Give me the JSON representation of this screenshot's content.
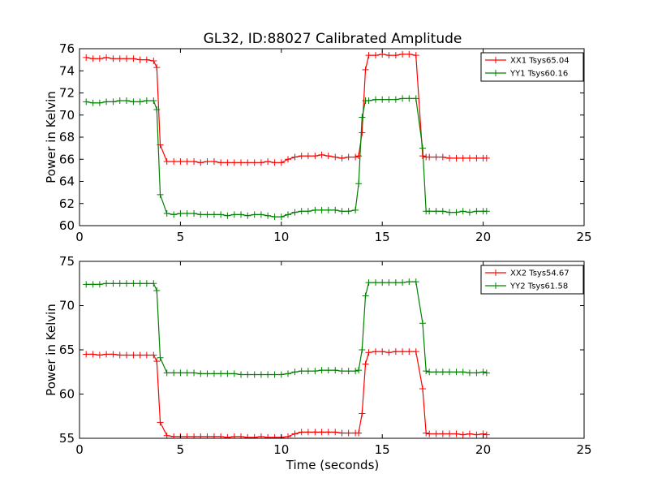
{
  "chart_data": [
    {
      "type": "line",
      "title": "GL32, ID:88027 Calibrated Amplitude",
      "xlabel": "",
      "ylabel": "Power in Kelvin",
      "xlim": [
        0,
        25
      ],
      "ylim": [
        60,
        76
      ],
      "xticks": [
        0,
        5,
        10,
        15,
        20,
        25
      ],
      "yticks": [
        60,
        62,
        64,
        66,
        68,
        70,
        72,
        74,
        76
      ],
      "grid": false,
      "legend_position": "top-right",
      "x": [
        0.33,
        0.67,
        1.0,
        1.33,
        1.67,
        2.0,
        2.33,
        2.67,
        3.0,
        3.33,
        3.67,
        3.83,
        4.0,
        4.33,
        4.67,
        5.0,
        5.33,
        5.67,
        6.0,
        6.33,
        6.67,
        7.0,
        7.33,
        7.67,
        8.0,
        8.33,
        8.67,
        9.0,
        9.33,
        9.67,
        10.0,
        10.33,
        10.67,
        11.0,
        11.33,
        11.67,
        12.0,
        12.33,
        12.67,
        13.0,
        13.33,
        13.67,
        13.83,
        14.0,
        14.17,
        14.33,
        14.67,
        15.0,
        15.33,
        15.67,
        16.0,
        16.33,
        16.67,
        17.0,
        17.17,
        17.33,
        17.67,
        18.0,
        18.33,
        18.67,
        19.0,
        19.33,
        19.67,
        20.0,
        20.17
      ],
      "series": [
        {
          "name": "XX1 Tsys65.04",
          "color": "#ff0000",
          "values": [
            75.2,
            75.1,
            75.1,
            75.2,
            75.1,
            75.1,
            75.1,
            75.1,
            75.0,
            75.0,
            74.9,
            74.3,
            67.3,
            65.8,
            65.8,
            65.8,
            65.8,
            65.8,
            65.7,
            65.8,
            65.8,
            65.7,
            65.7,
            65.7,
            65.7,
            65.7,
            65.7,
            65.7,
            65.8,
            65.7,
            65.7,
            66.0,
            66.2,
            66.3,
            66.3,
            66.3,
            66.4,
            66.3,
            66.2,
            66.1,
            66.2,
            66.2,
            66.3,
            68.4,
            74.1,
            75.4,
            75.4,
            75.5,
            75.4,
            75.4,
            75.5,
            75.5,
            75.4,
            66.3,
            66.2,
            66.2,
            66.2,
            66.2,
            66.1,
            66.1,
            66.1,
            66.1,
            66.1,
            66.1,
            66.1
          ]
        },
        {
          "name": "YY1 Tsys60.16",
          "color": "#008000",
          "values": [
            71.2,
            71.1,
            71.1,
            71.2,
            71.2,
            71.3,
            71.3,
            71.2,
            71.2,
            71.3,
            71.3,
            70.5,
            62.8,
            61.1,
            61.0,
            61.1,
            61.1,
            61.1,
            61.0,
            61.0,
            61.0,
            61.0,
            60.9,
            61.0,
            61.0,
            60.9,
            61.0,
            61.0,
            60.9,
            60.8,
            60.8,
            61.0,
            61.2,
            61.3,
            61.3,
            61.4,
            61.4,
            61.4,
            61.4,
            61.3,
            61.3,
            61.4,
            63.8,
            69.8,
            71.3,
            71.3,
            71.4,
            71.4,
            71.4,
            71.4,
            71.5,
            71.5,
            71.5,
            67.0,
            61.3,
            61.3,
            61.3,
            61.3,
            61.2,
            61.2,
            61.3,
            61.2,
            61.3,
            61.3,
            61.3
          ]
        }
      ]
    },
    {
      "type": "line",
      "title": "",
      "xlabel": "Time (seconds)",
      "ylabel": "Power in Kelvin",
      "xlim": [
        0,
        25
      ],
      "ylim": [
        55,
        75
      ],
      "xticks": [
        0,
        5,
        10,
        15,
        20,
        25
      ],
      "yticks": [
        55,
        60,
        65,
        70,
        75
      ],
      "grid": false,
      "legend_position": "top-right",
      "x": [
        0.33,
        0.67,
        1.0,
        1.33,
        1.67,
        2.0,
        2.33,
        2.67,
        3.0,
        3.33,
        3.67,
        3.83,
        4.0,
        4.33,
        4.67,
        5.0,
        5.33,
        5.67,
        6.0,
        6.33,
        6.67,
        7.0,
        7.33,
        7.67,
        8.0,
        8.33,
        8.67,
        9.0,
        9.33,
        9.67,
        10.0,
        10.33,
        10.67,
        11.0,
        11.33,
        11.67,
        12.0,
        12.33,
        12.67,
        13.0,
        13.33,
        13.67,
        13.83,
        14.0,
        14.17,
        14.33,
        14.67,
        15.0,
        15.33,
        15.67,
        16.0,
        16.33,
        16.67,
        17.0,
        17.17,
        17.33,
        17.67,
        18.0,
        18.33,
        18.67,
        19.0,
        19.33,
        19.67,
        20.0,
        20.17
      ],
      "series": [
        {
          "name": "XX2 Tsys54.67",
          "color": "#ff0000",
          "values": [
            64.5,
            64.5,
            64.4,
            64.5,
            64.5,
            64.4,
            64.4,
            64.4,
            64.4,
            64.4,
            64.4,
            63.7,
            56.8,
            55.3,
            55.2,
            55.2,
            55.2,
            55.2,
            55.2,
            55.2,
            55.2,
            55.2,
            55.1,
            55.2,
            55.2,
            55.1,
            55.1,
            55.2,
            55.1,
            55.1,
            55.1,
            55.2,
            55.5,
            55.7,
            55.7,
            55.7,
            55.7,
            55.7,
            55.7,
            55.6,
            55.6,
            55.6,
            55.6,
            57.8,
            63.4,
            64.7,
            64.8,
            64.8,
            64.7,
            64.8,
            64.8,
            64.8,
            64.8,
            60.6,
            55.6,
            55.5,
            55.5,
            55.5,
            55.5,
            55.5,
            55.4,
            55.5,
            55.4,
            55.5,
            55.4
          ]
        },
        {
          "name": "YY2 Tsys61.58",
          "color": "#008000",
          "values": [
            72.4,
            72.4,
            72.4,
            72.5,
            72.5,
            72.5,
            72.5,
            72.5,
            72.5,
            72.5,
            72.5,
            71.7,
            64.1,
            62.4,
            62.4,
            62.4,
            62.4,
            62.4,
            62.3,
            62.3,
            62.3,
            62.3,
            62.3,
            62.3,
            62.2,
            62.2,
            62.2,
            62.2,
            62.2,
            62.2,
            62.2,
            62.3,
            62.5,
            62.6,
            62.6,
            62.6,
            62.7,
            62.7,
            62.7,
            62.6,
            62.6,
            62.6,
            62.7,
            65.0,
            71.1,
            72.6,
            72.6,
            72.6,
            72.6,
            72.6,
            72.6,
            72.7,
            72.7,
            68.0,
            62.6,
            62.5,
            62.5,
            62.5,
            62.5,
            62.5,
            62.5,
            62.4,
            62.4,
            62.5,
            62.4
          ]
        }
      ]
    }
  ]
}
